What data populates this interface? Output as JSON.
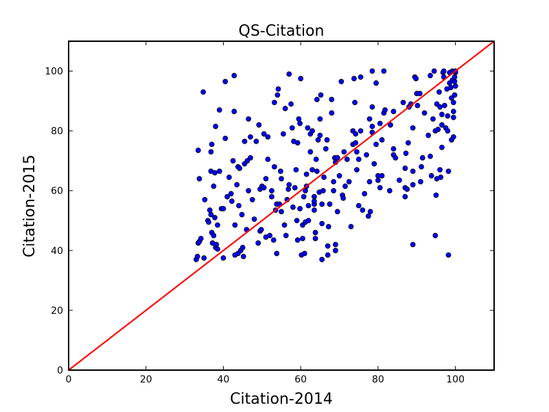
{
  "chart_data": {
    "type": "scatter",
    "title": "QS-Citation",
    "xlabel": "Citation-2014",
    "ylabel": "Citation-2015",
    "xlim": [
      0,
      110
    ],
    "ylim": [
      0,
      110
    ],
    "xticks": [
      0,
      20,
      40,
      60,
      80,
      100
    ],
    "yticks": [
      0,
      20,
      40,
      60,
      80,
      100
    ],
    "grid": false,
    "point_color": "#0000ff",
    "point_edge_color": "#000000",
    "reference_line": {
      "type": "diagonal",
      "from": [
        0,
        0
      ],
      "to": [
        110,
        110
      ],
      "color": "#ff0000"
    },
    "series": [
      {
        "points": [
          [
            33.0,
            37.0
          ],
          [
            33.3,
            38.0
          ],
          [
            33.5,
            42.5
          ],
          [
            33.8,
            43.0
          ],
          [
            34.2,
            44.0
          ],
          [
            35.0,
            37.5
          ],
          [
            33.5,
            73.5
          ],
          [
            33.8,
            64.0
          ],
          [
            34.8,
            93.0
          ],
          [
            35.2,
            57.0
          ],
          [
            36.0,
            50.0
          ],
          [
            36.2,
            49.5
          ],
          [
            36.5,
            53.5
          ],
          [
            36.8,
            52.0
          ],
          [
            37.0,
            46.0
          ],
          [
            37.5,
            45.0
          ],
          [
            37.2,
            42.5
          ],
          [
            37.8,
            66.0
          ],
          [
            36.8,
            66.5
          ],
          [
            37.0,
            75.5
          ],
          [
            36.8,
            73.0
          ],
          [
            37.5,
            61.5
          ],
          [
            38.0,
            41.0
          ],
          [
            38.2,
            42.0
          ],
          [
            38.5,
            40.5
          ],
          [
            38.0,
            81.5
          ],
          [
            38.5,
            48.5
          ],
          [
            37.8,
            51.0
          ],
          [
            39.0,
            87.0
          ],
          [
            39.0,
            66.5
          ],
          [
            39.5,
            54.0
          ],
          [
            40.0,
            54.0
          ],
          [
            40.0,
            37.5
          ],
          [
            40.5,
            77.5
          ],
          [
            40.5,
            96.5
          ],
          [
            41.0,
            58.0
          ],
          [
            41.5,
            64.5
          ],
          [
            42.0,
            59.0
          ],
          [
            42.2,
            56.5
          ],
          [
            42.5,
            70.0
          ],
          [
            42.8,
            86.5
          ],
          [
            42.8,
            98.5
          ],
          [
            43.0,
            48.5
          ],
          [
            43.0,
            38.5
          ],
          [
            43.5,
            62.0
          ],
          [
            43.8,
            39.0
          ],
          [
            44.0,
            55.0
          ],
          [
            43.8,
            68.0
          ],
          [
            44.2,
            67.5
          ],
          [
            44.5,
            40.0
          ],
          [
            45.0,
            41.0
          ],
          [
            45.2,
            38.0
          ],
          [
            44.8,
            52.0
          ],
          [
            45.5,
            69.0
          ],
          [
            45.5,
            76.5
          ],
          [
            46.0,
            47.0
          ],
          [
            46.2,
            70.0
          ],
          [
            46.5,
            84.0
          ],
          [
            47.0,
            71.0
          ],
          [
            46.5,
            60.0
          ],
          [
            47.0,
            78.0
          ],
          [
            47.5,
            57.0
          ],
          [
            48.0,
            50.5
          ],
          [
            48.5,
            76.5
          ],
          [
            49.0,
            42.5
          ],
          [
            49.2,
            82.0
          ],
          [
            49.5,
            60.5
          ],
          [
            49.5,
            46.5
          ],
          [
            49.8,
            47.0
          ],
          [
            50.0,
            61.5
          ],
          [
            50.5,
            61.0
          ],
          [
            50.5,
            79.0
          ],
          [
            51.0,
            44.5
          ],
          [
            51.0,
            64.0
          ],
          [
            51.5,
            70.5
          ],
          [
            51.5,
            78.0
          ],
          [
            52.0,
            45.0
          ],
          [
            52.5,
            60.0
          ],
          [
            52.5,
            58.0
          ],
          [
            53.0,
            43.5
          ],
          [
            53.2,
            68.0
          ],
          [
            53.2,
            89.5
          ],
          [
            53.5,
            53.5
          ],
          [
            53.8,
            39.0
          ],
          [
            53.8,
            55.5
          ],
          [
            54.0,
            92.0
          ],
          [
            54.2,
            94.0
          ],
          [
            54.5,
            55.5
          ],
          [
            54.8,
            66.5
          ],
          [
            55.0,
            53.0
          ],
          [
            55.0,
            64.0
          ],
          [
            55.5,
            79.0
          ],
          [
            55.8,
            48.5
          ],
          [
            56.0,
            87.5
          ],
          [
            56.2,
            45.0
          ],
          [
            56.5,
            57.0
          ],
          [
            56.8,
            60.5
          ],
          [
            57.0,
            99.0
          ],
          [
            57.0,
            62.0
          ],
          [
            57.5,
            89.0
          ],
          [
            57.8,
            81.0
          ],
          [
            58.0,
            54.5
          ],
          [
            58.2,
            76.5
          ],
          [
            58.5,
            61.0
          ],
          [
            58.8,
            67.0
          ],
          [
            59.0,
            50.0
          ],
          [
            59.2,
            43.5
          ],
          [
            59.2,
            76.0
          ],
          [
            59.5,
            84.0
          ],
          [
            59.8,
            82.5
          ],
          [
            59.8,
            54.0
          ],
          [
            60.0,
            97.5
          ],
          [
            60.2,
            38.5
          ],
          [
            60.5,
            48.5
          ],
          [
            60.5,
            44.0
          ],
          [
            60.8,
            58.0
          ],
          [
            61.0,
            39.0
          ],
          [
            61.2,
            49.5
          ],
          [
            61.2,
            60.0
          ],
          [
            61.5,
            61.5
          ],
          [
            61.5,
            65.5
          ],
          [
            61.8,
            81.0
          ],
          [
            62.0,
            50.0
          ],
          [
            62.0,
            55.0
          ],
          [
            62.5,
            73.0
          ],
          [
            62.5,
            79.0
          ],
          [
            63.0,
            67.0
          ],
          [
            63.0,
            80.0
          ],
          [
            63.5,
            58.0
          ],
          [
            63.5,
            53.5
          ],
          [
            63.5,
            55.5
          ],
          [
            63.5,
            56.5
          ],
          [
            63.8,
            46.0
          ],
          [
            63.8,
            44.0
          ],
          [
            64.0,
            70.5
          ],
          [
            64.2,
            66.5
          ],
          [
            64.2,
            90.5
          ],
          [
            64.5,
            77.0
          ],
          [
            64.8,
            59.5
          ],
          [
            65.0,
            78.5
          ],
          [
            65.0,
            84.0
          ],
          [
            65.2,
            92.0
          ],
          [
            65.5,
            55.5
          ],
          [
            65.5,
            49.0
          ],
          [
            65.5,
            37.0
          ],
          [
            65.8,
            60.0
          ],
          [
            66.0,
            64.5
          ],
          [
            66.5,
            74.0
          ],
          [
            66.8,
            77.0
          ],
          [
            67.0,
            38.5
          ],
          [
            67.0,
            41.5
          ],
          [
            67.2,
            48.0
          ],
          [
            67.5,
            55.5
          ],
          [
            68.0,
            86.0
          ],
          [
            68.0,
            90.5
          ],
          [
            68.5,
            63.0
          ],
          [
            68.5,
            60.0
          ],
          [
            68.8,
            71.0
          ],
          [
            69.0,
            42.0
          ],
          [
            69.0,
            40.0
          ],
          [
            69.0,
            69.5
          ],
          [
            69.5,
            71.0
          ],
          [
            69.5,
            53.0
          ],
          [
            70.0,
            65.0
          ],
          [
            70.5,
            96.5
          ],
          [
            70.8,
            58.5
          ],
          [
            71.0,
            57.5
          ],
          [
            71.2,
            73.0
          ],
          [
            71.5,
            61.5
          ],
          [
            72.0,
            70.5
          ],
          [
            72.5,
            63.0
          ],
          [
            73.0,
            48.0
          ],
          [
            73.5,
            75.5
          ],
          [
            73.5,
            80.0
          ],
          [
            73.8,
            97.5
          ],
          [
            74.0,
            89.5
          ],
          [
            74.2,
            76.0
          ],
          [
            74.2,
            79.0
          ],
          [
            74.5,
            73.0
          ],
          [
            74.5,
            67.0
          ],
          [
            75.0,
            55.0
          ],
          [
            75.0,
            70.5
          ],
          [
            75.5,
            80.0
          ],
          [
            75.5,
            98.0
          ],
          [
            76.0,
            53.5
          ],
          [
            76.5,
            59.0
          ],
          [
            77.0,
            72.0
          ],
          [
            77.5,
            51.5
          ],
          [
            77.8,
            84.0
          ],
          [
            77.8,
            63.0
          ],
          [
            78.0,
            53.0
          ],
          [
            78.5,
            100.0
          ],
          [
            78.5,
            79.5
          ],
          [
            78.5,
            88.0
          ],
          [
            78.5,
            81.5
          ],
          [
            79.0,
            69.0
          ],
          [
            79.5,
            96.0
          ],
          [
            79.5,
            75.5
          ],
          [
            80.0,
            65.0
          ],
          [
            80.0,
            63.5
          ],
          [
            80.5,
            61.0
          ],
          [
            80.5,
            82.5
          ],
          [
            81.0,
            77.0
          ],
          [
            81.0,
            65.0
          ],
          [
            81.5,
            86.0
          ],
          [
            81.5,
            100.0
          ],
          [
            81.8,
            87.0
          ],
          [
            83.0,
            60.0
          ],
          [
            83.2,
            82.0
          ],
          [
            84.0,
            86.5
          ],
          [
            84.0,
            74.0
          ],
          [
            84.0,
            72.0
          ],
          [
            84.5,
            71.0
          ],
          [
            85.5,
            63.5
          ],
          [
            86.5,
            89.5
          ],
          [
            87.0,
            58.0
          ],
          [
            87.0,
            61.0
          ],
          [
            87.0,
            67.5
          ],
          [
            87.2,
            72.5
          ],
          [
            87.5,
            60.5
          ],
          [
            87.8,
            76.0
          ],
          [
            88.0,
            88.0
          ],
          [
            88.5,
            89.0
          ],
          [
            89.0,
            66.5
          ],
          [
            89.0,
            81.0
          ],
          [
            89.0,
            62.0
          ],
          [
            89.0,
            42.0
          ],
          [
            89.5,
            98.0
          ],
          [
            89.8,
            97.5
          ],
          [
            90.0,
            92.5
          ],
          [
            90.2,
            88.5
          ],
          [
            90.8,
            92.5
          ],
          [
            91.0,
            63.0
          ],
          [
            91.2,
            68.0
          ],
          [
            91.5,
            71.0
          ],
          [
            92.0,
            86.0
          ],
          [
            93.0,
            78.5
          ],
          [
            93.5,
            98.5
          ],
          [
            93.5,
            71.5
          ],
          [
            93.8,
            65.0
          ],
          [
            94.2,
            84.0
          ],
          [
            94.5,
            100.0
          ],
          [
            94.8,
            80.0
          ],
          [
            94.8,
            45.0
          ],
          [
            95.0,
            58.5
          ],
          [
            95.2,
            64.0
          ],
          [
            95.2,
            89.0
          ],
          [
            95.5,
            80.5
          ],
          [
            95.8,
            93.0
          ],
          [
            96.0,
            67.0
          ],
          [
            96.0,
            88.0
          ],
          [
            96.2,
            64.5
          ],
          [
            96.5,
            74.5
          ],
          [
            96.5,
            82.0
          ],
          [
            96.5,
            85.5
          ],
          [
            96.8,
            99.5
          ],
          [
            97.0,
            98.0
          ],
          [
            97.0,
            100.0
          ],
          [
            97.2,
            88.5
          ],
          [
            97.5,
            81.0
          ],
          [
            97.8,
            94.0
          ],
          [
            98.0,
            80.0
          ],
          [
            98.0,
            85.0
          ],
          [
            98.2,
            66.5
          ],
          [
            98.2,
            38.5
          ],
          [
            98.5,
            99.5
          ],
          [
            98.5,
            96.0
          ],
          [
            98.8,
            94.5
          ],
          [
            99.0,
            77.0
          ],
          [
            99.0,
            91.0
          ],
          [
            99.2,
            97.0
          ],
          [
            99.2,
            100.0
          ],
          [
            99.5,
            78.0
          ],
          [
            99.5,
            86.5
          ],
          [
            99.5,
            84.5
          ],
          [
            99.5,
            89.5
          ],
          [
            99.8,
            92.0
          ],
          [
            99.8,
            96.5
          ],
          [
            99.8,
            98.0
          ],
          [
            100.0,
            95.0
          ],
          [
            100.0,
            99.5
          ],
          [
            100.0,
            100.0
          ]
        ]
      }
    ]
  }
}
